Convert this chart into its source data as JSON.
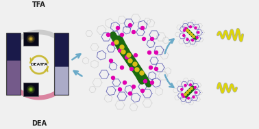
{
  "bg_color": "#f0f0f0",
  "left_panel": {
    "vial_left_top": "#1a1a4a",
    "vial_left_bottom": "#c090c0",
    "vial_right_top": "#1a1a4a",
    "vial_right_bottom": "#d0d0e8",
    "uv_bg": "#080818",
    "uv_spot1": "#d0b030",
    "uv_spot2": "#90c820",
    "label_tfa": "TFA",
    "label_dea": "DEA",
    "label_dea_tfa_left": "DEA",
    "label_dea_tfa_right": "TFA",
    "arrow_top_color": "#c8c8c8",
    "arrow_bot_color": "#d87898",
    "cycle_color": "#c8b830"
  },
  "cluster": {
    "green": "#1a6a10",
    "yellow": "#d8c018",
    "magenta": "#e000b0",
    "blue_ring": "#3030a0",
    "gray_ring": "#909090",
    "white_ring": "#d0d0d0"
  },
  "arrow_col": "#6aaac8",
  "helix_yellow": "#e0d800",
  "helix_outline": "#a0a0a0",
  "figsize": [
    3.78,
    1.89
  ],
  "dpi": 100
}
